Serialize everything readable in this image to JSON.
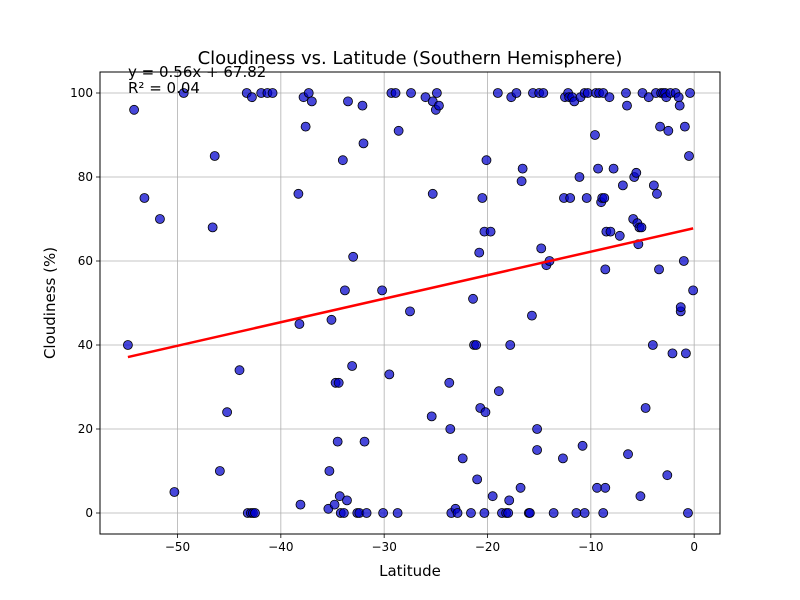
{
  "chart_data": {
    "type": "scatter",
    "title": "Cloudiness vs. Latitude (Southern Hemisphere)",
    "xlabel": "Latitude",
    "ylabel": "Cloudiness (%)",
    "xlim": [
      -57.5,
      2.5
    ],
    "ylim": [
      -5,
      105
    ],
    "xticks": [
      -50,
      -40,
      -30,
      -20,
      -10,
      0
    ],
    "yticks": [
      0,
      20,
      40,
      60,
      80,
      100
    ],
    "grid": true,
    "regression": {
      "equation": "y = 0.56x + 67.82",
      "r_squared": "R² = 0.04",
      "slope": 0.56,
      "intercept": 67.82,
      "x_range": [
        -54.8,
        -0.1
      ],
      "color": "#ff0000"
    },
    "point_color": "#0000cc",
    "point_edge_color": "#000000",
    "points": [
      [
        -54.8,
        40
      ],
      [
        -54.2,
        96
      ],
      [
        -53.2,
        75
      ],
      [
        -51.7,
        70
      ],
      [
        -50.3,
        5
      ],
      [
        -49.4,
        100
      ],
      [
        -46.6,
        68
      ],
      [
        -46.4,
        85
      ],
      [
        -45.9,
        10
      ],
      [
        -45.2,
        24
      ],
      [
        -44.0,
        34
      ],
      [
        -43.3,
        100
      ],
      [
        -43.2,
        0
      ],
      [
        -42.9,
        0
      ],
      [
        -42.7,
        0
      ],
      [
        -42.5,
        0
      ],
      [
        -42.8,
        99
      ],
      [
        -41.9,
        100
      ],
      [
        -41.3,
        100
      ],
      [
        -40.8,
        100
      ],
      [
        -38.2,
        45
      ],
      [
        -38.1,
        2
      ],
      [
        -38.3,
        76
      ],
      [
        -37.8,
        99
      ],
      [
        -37.6,
        92
      ],
      [
        -37.3,
        100
      ],
      [
        -37.0,
        98
      ],
      [
        -35.4,
        1
      ],
      [
        -35.3,
        10
      ],
      [
        -35.1,
        46
      ],
      [
        -34.8,
        2
      ],
      [
        -34.7,
        31
      ],
      [
        -34.5,
        17
      ],
      [
        -34.4,
        31
      ],
      [
        -34.3,
        4
      ],
      [
        -34.2,
        0
      ],
      [
        -34.0,
        84
      ],
      [
        -33.9,
        0
      ],
      [
        -33.8,
        53
      ],
      [
        -33.6,
        3
      ],
      [
        -33.5,
        98
      ],
      [
        -33.1,
        35
      ],
      [
        -33.0,
        61
      ],
      [
        -32.6,
        0
      ],
      [
        -32.4,
        0
      ],
      [
        -32.1,
        97
      ],
      [
        -32.0,
        88
      ],
      [
        -31.9,
        17
      ],
      [
        -31.7,
        0
      ],
      [
        -30.2,
        53
      ],
      [
        -30.1,
        0
      ],
      [
        -29.5,
        33
      ],
      [
        -29.3,
        100
      ],
      [
        -28.9,
        100
      ],
      [
        -28.7,
        0
      ],
      [
        -28.6,
        91
      ],
      [
        -27.5,
        48
      ],
      [
        -27.4,
        100
      ],
      [
        -26.0,
        99
      ],
      [
        -25.4,
        23
      ],
      [
        -25.3,
        76
      ],
      [
        -25.3,
        98
      ],
      [
        -25.0,
        96
      ],
      [
        -24.9,
        100
      ],
      [
        -24.7,
        97
      ],
      [
        -23.7,
        31
      ],
      [
        -23.6,
        20
      ],
      [
        -23.5,
        0
      ],
      [
        -23.1,
        1
      ],
      [
        -22.9,
        0
      ],
      [
        -22.4,
        13
      ],
      [
        -21.6,
        0
      ],
      [
        -21.4,
        51
      ],
      [
        -21.3,
        40
      ],
      [
        -21.1,
        40
      ],
      [
        -21.0,
        8
      ],
      [
        -20.8,
        62
      ],
      [
        -20.7,
        25
      ],
      [
        -20.5,
        75
      ],
      [
        -20.3,
        67
      ],
      [
        -20.3,
        0
      ],
      [
        -20.2,
        24
      ],
      [
        -20.1,
        84
      ],
      [
        -19.7,
        67
      ],
      [
        -19.5,
        4
      ],
      [
        -19.0,
        100
      ],
      [
        -18.9,
        29
      ],
      [
        -18.6,
        0
      ],
      [
        -18.2,
        0
      ],
      [
        -18.0,
        0
      ],
      [
        -17.9,
        3
      ],
      [
        -17.8,
        40
      ],
      [
        -17.7,
        99
      ],
      [
        -17.2,
        100
      ],
      [
        -16.8,
        6
      ],
      [
        -16.7,
        79
      ],
      [
        -16.6,
        82
      ],
      [
        -16.0,
        0
      ],
      [
        -15.9,
        0
      ],
      [
        -15.7,
        47
      ],
      [
        -15.6,
        100
      ],
      [
        -15.2,
        20
      ],
      [
        -15.2,
        15
      ],
      [
        -15.0,
        100
      ],
      [
        -14.8,
        63
      ],
      [
        -14.6,
        100
      ],
      [
        -14.3,
        59
      ],
      [
        -14.0,
        60
      ],
      [
        -13.6,
        0
      ],
      [
        -12.7,
        13
      ],
      [
        -12.6,
        75
      ],
      [
        -12.5,
        99
      ],
      [
        -12.2,
        100
      ],
      [
        -12.1,
        99
      ],
      [
        -12.0,
        75
      ],
      [
        -11.8,
        99
      ],
      [
        -11.6,
        98
      ],
      [
        -11.4,
        0
      ],
      [
        -11.1,
        80
      ],
      [
        -11.0,
        99
      ],
      [
        -10.8,
        16
      ],
      [
        -10.6,
        0
      ],
      [
        -10.6,
        100
      ],
      [
        -10.4,
        75
      ],
      [
        -10.3,
        100
      ],
      [
        -9.6,
        90
      ],
      [
        -9.5,
        100
      ],
      [
        -9.4,
        6
      ],
      [
        -9.3,
        82
      ],
      [
        -9.2,
        100
      ],
      [
        -9.0,
        74
      ],
      [
        -8.9,
        75
      ],
      [
        -8.8,
        100
      ],
      [
        -8.8,
        0
      ],
      [
        -8.7,
        75
      ],
      [
        -8.6,
        58
      ],
      [
        -8.6,
        6
      ],
      [
        -8.5,
        67
      ],
      [
        -8.2,
        99
      ],
      [
        -8.1,
        67
      ],
      [
        -7.8,
        82
      ],
      [
        -7.2,
        66
      ],
      [
        -6.9,
        78
      ],
      [
        -6.6,
        100
      ],
      [
        -6.5,
        97
      ],
      [
        -6.4,
        14
      ],
      [
        -5.9,
        70
      ],
      [
        -5.8,
        80
      ],
      [
        -5.6,
        81
      ],
      [
        -5.5,
        69
      ],
      [
        -5.4,
        64
      ],
      [
        -5.3,
        68
      ],
      [
        -5.2,
        4
      ],
      [
        -5.1,
        68
      ],
      [
        -5.0,
        100
      ],
      [
        -4.7,
        25
      ],
      [
        -4.4,
        99
      ],
      [
        -4.0,
        40
      ],
      [
        -3.9,
        78
      ],
      [
        -3.7,
        100
      ],
      [
        -3.6,
        76
      ],
      [
        -3.4,
        58
      ],
      [
        -3.3,
        92
      ],
      [
        -3.2,
        100
      ],
      [
        -3.0,
        100
      ],
      [
        -2.8,
        100
      ],
      [
        -2.7,
        99
      ],
      [
        -2.6,
        9
      ],
      [
        -2.5,
        91
      ],
      [
        -2.3,
        100
      ],
      [
        -2.1,
        38
      ],
      [
        -1.8,
        100
      ],
      [
        -1.5,
        99
      ],
      [
        -1.4,
        97
      ],
      [
        -1.3,
        48
      ],
      [
        -1.3,
        49
      ],
      [
        -1.0,
        60
      ],
      [
        -0.9,
        92
      ],
      [
        -0.8,
        38
      ],
      [
        -0.6,
        0
      ],
      [
        -0.5,
        85
      ],
      [
        -0.4,
        100
      ],
      [
        -0.1,
        53
      ]
    ]
  }
}
